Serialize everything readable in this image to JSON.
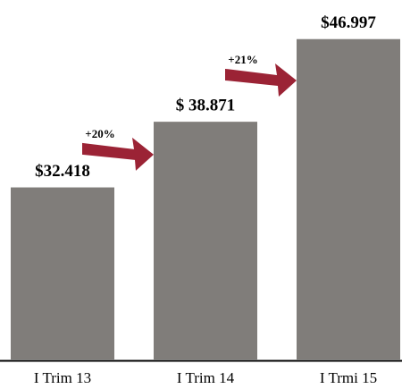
{
  "chart_data": {
    "type": "bar",
    "categories": [
      "I Trim 13",
      "I Trim 14",
      "I Trmi 15"
    ],
    "values": [
      32418,
      38871,
      46997
    ],
    "value_labels": [
      "$32.418",
      "$ 38.871",
      "$46.997"
    ],
    "color": "#807d7a",
    "ylim": [
      15500,
      47500
    ],
    "annotations": [
      "+20%",
      "+21%"
    ],
    "arrow_color": "#9b2335"
  }
}
